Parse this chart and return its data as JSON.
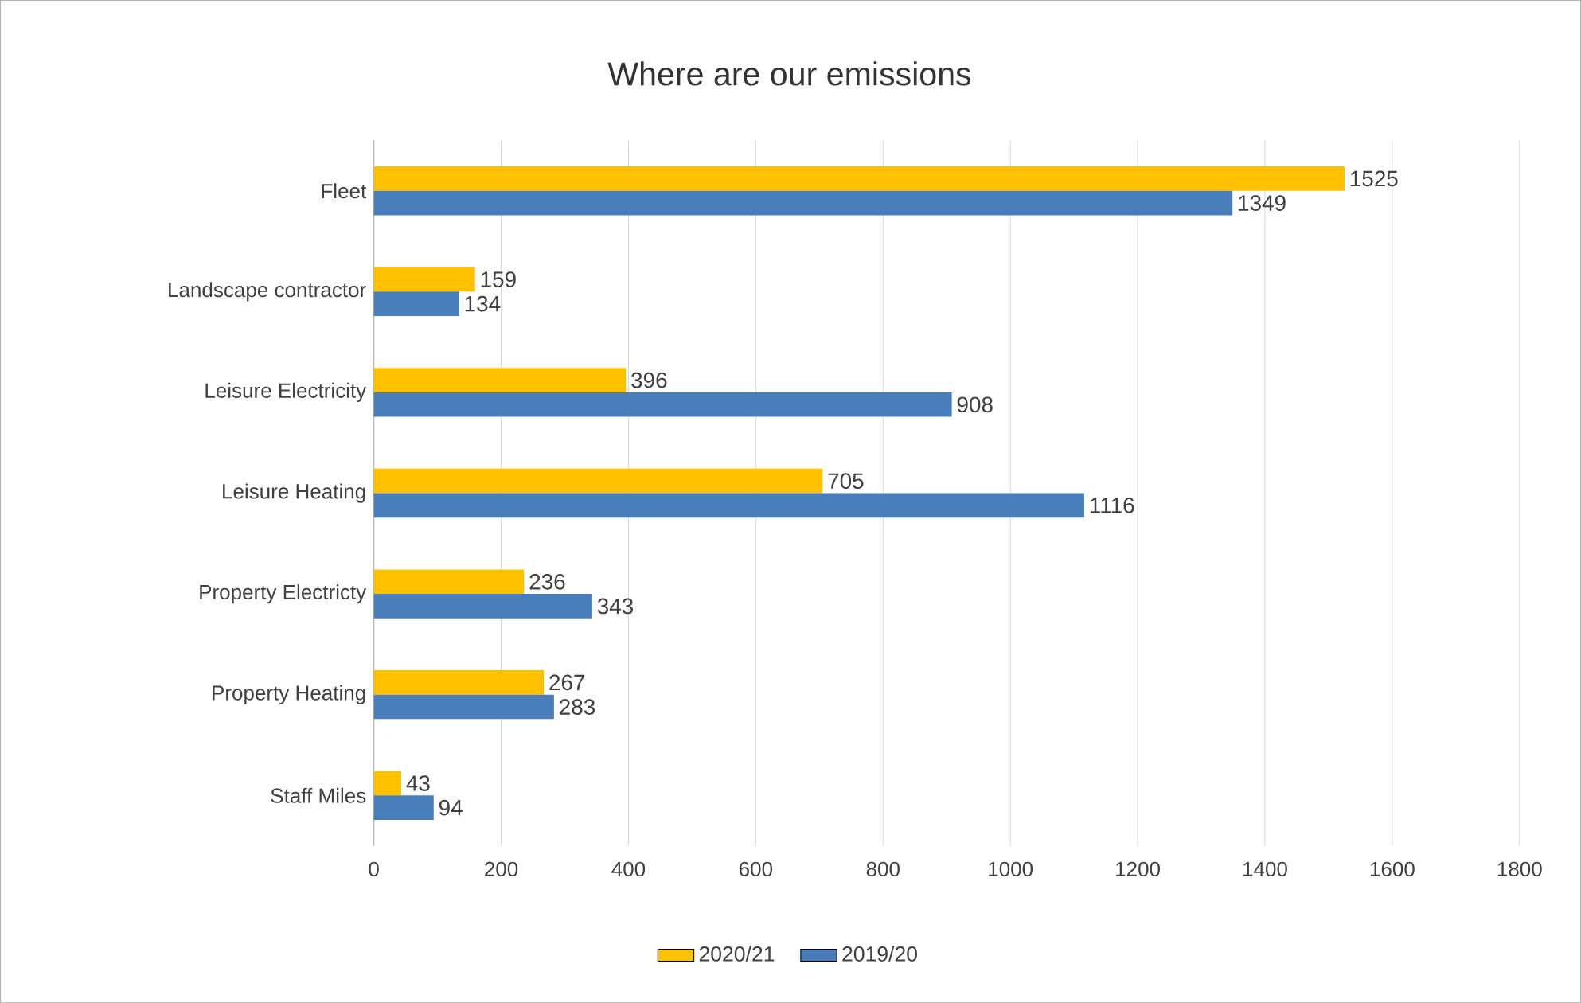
{
  "chart_data": {
    "type": "bar",
    "orientation": "horizontal",
    "title": "Where are our emissions",
    "categories": [
      "Fleet",
      "Landscape contractor",
      "Leisure Electricity",
      "Leisure Heating",
      "Property Electricty",
      "Property Heating",
      "Staff Miles"
    ],
    "series": [
      {
        "name": "2020/21",
        "color": "#ffc000",
        "values": [
          1525,
          159,
          396,
          705,
          236,
          267,
          43
        ]
      },
      {
        "name": "2019/20",
        "color": "#4a7ebb",
        "values": [
          1349,
          134,
          908,
          1116,
          343,
          283,
          94
        ]
      }
    ],
    "xlim": [
      0,
      1800
    ],
    "xticks": [
      0,
      200,
      400,
      600,
      800,
      1000,
      1200,
      1400,
      1600,
      1800
    ],
    "grid": "x",
    "legend": "bottom",
    "data_labels": true
  }
}
